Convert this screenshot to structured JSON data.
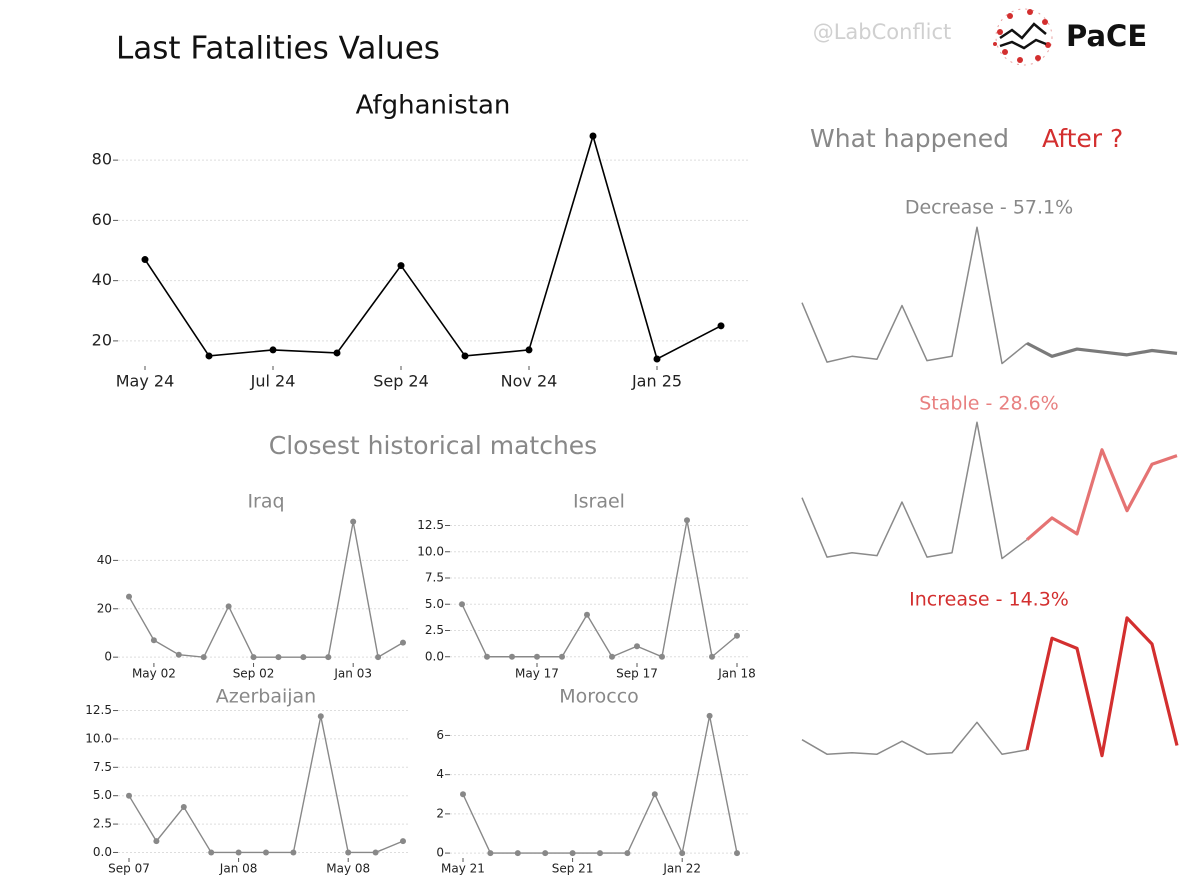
{
  "header": {
    "title": "Last Fatalities Values",
    "handle": "@LabConflict",
    "logo": "PaCE"
  },
  "after_title": {
    "text": "What happened",
    "highlight": "After ?"
  },
  "matches_title": "Closest historical matches",
  "chart_data": [
    {
      "type": "line",
      "title": "Afghanistan",
      "color": "#000000",
      "grid": true,
      "categories": [
        "May 24",
        null,
        "Jul 24",
        null,
        "Sep 24",
        null,
        "Nov 24",
        null,
        "Jan 25",
        null
      ],
      "values": [
        47,
        15,
        17,
        16,
        45,
        15,
        17,
        88,
        14,
        25
      ],
      "ylim": [
        12,
        90
      ],
      "yticks": [
        20,
        40,
        60,
        80
      ]
    },
    {
      "type": "line",
      "title": "Iraq",
      "color": "#888888",
      "grid": true,
      "categories": [
        null,
        "May 02",
        null,
        null,
        null,
        "Sep 02",
        null,
        null,
        null,
        "Jan 03",
        null,
        null
      ],
      "values": [
        25,
        7,
        1,
        0,
        21,
        0,
        0,
        0,
        0,
        56,
        0,
        6
      ],
      "ylim": [
        -2,
        60
      ],
      "yticks": [
        0,
        20,
        40
      ]
    },
    {
      "type": "line",
      "title": "Israel",
      "color": "#888888",
      "grid": true,
      "categories": [
        null,
        null,
        null,
        "May 17",
        null,
        null,
        null,
        "Sep 17",
        null,
        null,
        null,
        "Jan 18"
      ],
      "values": [
        5,
        0,
        0,
        0,
        0,
        4,
        0,
        1,
        0,
        13,
        0,
        2
      ],
      "ylim": [
        -0.5,
        13.5
      ],
      "yticks": [
        {
          "value": 0,
          "label": "0.0"
        },
        2.5,
        {
          "value": 5,
          "label": "5.0"
        },
        7.5,
        {
          "value": 10,
          "label": "10.0"
        },
        12.5
      ]
    },
    {
      "type": "line",
      "title": "Azerbaijan",
      "color": "#888888",
      "grid": true,
      "categories": [
        "Sep 07",
        null,
        null,
        null,
        "Jan 08",
        null,
        null,
        null,
        "May 08",
        null,
        null
      ],
      "values": [
        5,
        1,
        4,
        0,
        0,
        0,
        0,
        12,
        0,
        0,
        1
      ],
      "ylim": [
        -0.4,
        12.9
      ],
      "yticks": [
        {
          "value": 0,
          "label": "0.0"
        },
        2.5,
        {
          "value": 5,
          "label": "5.0"
        },
        7.5,
        {
          "value": 10,
          "label": "10.0"
        },
        12.5
      ]
    },
    {
      "type": "line",
      "title": "Morocco",
      "color": "#888888",
      "grid": true,
      "categories": [
        "May 21",
        null,
        null,
        null,
        "Sep 21",
        null,
        null,
        null,
        "Jan 22",
        null,
        null
      ],
      "values": [
        3,
        0,
        0,
        0,
        0,
        0,
        0,
        3,
        0,
        7,
        0
      ],
      "ylim": [
        -0.2,
        7.4
      ],
      "yticks": [
        0,
        2,
        4,
        6
      ]
    },
    {
      "type": "sparkline",
      "title": "Decrease - 57.1%",
      "title_color": "#888888",
      "ylim": [
        0,
        100
      ],
      "series": [
        {
          "color": "#8a8a8a",
          "values": [
            43,
            2,
            6,
            4,
            41,
            3,
            6,
            95,
            1,
            15,
            null,
            null,
            null,
            null,
            null,
            null
          ]
        },
        {
          "color": "#7a7a7a",
          "values": [
            null,
            null,
            null,
            null,
            null,
            null,
            null,
            null,
            null,
            15,
            6,
            11,
            9,
            7,
            10,
            8
          ]
        }
      ]
    },
    {
      "type": "sparkline",
      "title": "Stable - 28.6%",
      "title_color": "#e88080",
      "ylim": [
        0,
        100
      ],
      "series": [
        {
          "color": "#8a8a8a",
          "values": [
            43,
            2,
            5,
            3,
            40,
            2,
            5,
            95,
            1,
            14,
            null,
            null,
            null,
            null,
            null,
            null
          ]
        },
        {
          "color": "#e57373",
          "values": [
            null,
            null,
            null,
            null,
            null,
            null,
            null,
            null,
            null,
            14,
            29,
            18,
            76,
            34,
            66,
            72
          ]
        }
      ]
    },
    {
      "type": "sparkline",
      "title": "Increase - 14.3%",
      "title_color": "#d32f2f",
      "ylim": [
        0,
        100
      ],
      "series": [
        {
          "color": "#8a8a8a",
          "values": [
            14,
            4,
            5,
            4,
            13,
            4,
            5,
            26,
            4,
            7,
            null,
            null,
            null,
            null,
            null,
            null
          ]
        },
        {
          "color": "#d32f2f",
          "values": [
            null,
            null,
            null,
            null,
            null,
            null,
            null,
            null,
            null,
            7,
            84,
            77,
            3,
            98,
            80,
            10
          ]
        }
      ]
    }
  ]
}
